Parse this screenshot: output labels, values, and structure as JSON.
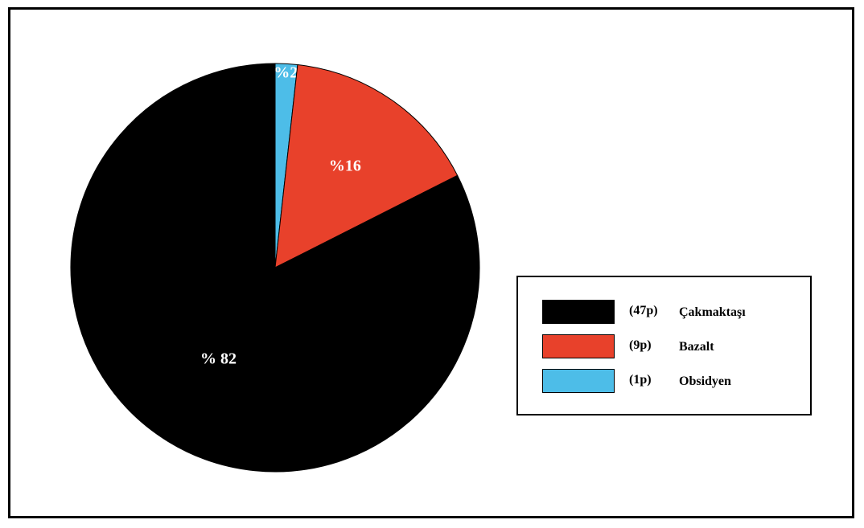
{
  "chart_data": {
    "type": "pie",
    "slices": [
      {
        "label": "Çakmaktaşı",
        "count_label": "(47p)",
        "percent_label": "% 82",
        "value": 47,
        "percent": 82,
        "color": "#000000"
      },
      {
        "label": "Bazalt",
        "count_label": "(9p)",
        "percent_label": "%16",
        "value": 9,
        "percent": 16,
        "color": "#e8412b"
      },
      {
        "label": "Obsidyen",
        "count_label": "(1p)",
        "percent_label": "%2",
        "value": 1,
        "percent": 2,
        "color": "#4dbde8"
      }
    ],
    "legend_placement": "right"
  }
}
